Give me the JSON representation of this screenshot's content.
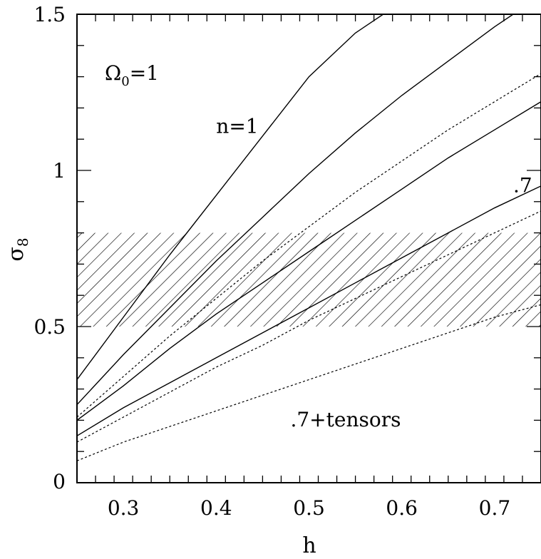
{
  "chart_data": {
    "type": "line",
    "xlabel": "h",
    "ylabel": "σ8",
    "xlim": [
      0.25,
      0.75
    ],
    "ylim": [
      0,
      1.5
    ],
    "x_ticks": [
      {
        "value": 0.3,
        "label": "0.3"
      },
      {
        "value": 0.4,
        "label": "0.4"
      },
      {
        "value": 0.5,
        "label": "0.5"
      },
      {
        "value": 0.6,
        "label": "0.6"
      },
      {
        "value": 0.7,
        "label": "0.7"
      }
    ],
    "y_ticks": [
      {
        "value": 0,
        "label": "0"
      },
      {
        "value": 0.5,
        "label": "0.5"
      },
      {
        "value": 1,
        "label": "1"
      },
      {
        "value": 1.5,
        "label": "1.5"
      }
    ],
    "shaded_band": {
      "ymin": 0.5,
      "ymax": 0.8,
      "pattern": "diagonal-hatch"
    },
    "series": [
      {
        "style": "solid",
        "x": [
          0.25,
          0.3,
          0.35,
          0.4,
          0.45,
          0.5,
          0.55,
          0.58
        ],
        "y": [
          0.33,
          0.53,
          0.73,
          0.92,
          1.11,
          1.3,
          1.44,
          1.5
        ]
      },
      {
        "style": "solid",
        "x": [
          0.25,
          0.3,
          0.35,
          0.4,
          0.45,
          0.5,
          0.55,
          0.6,
          0.65,
          0.7,
          0.72
        ],
        "y": [
          0.25,
          0.41,
          0.56,
          0.71,
          0.85,
          0.99,
          1.12,
          1.24,
          1.35,
          1.46,
          1.5
        ]
      },
      {
        "style": "dotted",
        "x": [
          0.25,
          0.3,
          0.35,
          0.4,
          0.45,
          0.5,
          0.55,
          0.6,
          0.65,
          0.7,
          0.75
        ],
        "y": [
          0.21,
          0.34,
          0.47,
          0.59,
          0.71,
          0.82,
          0.93,
          1.03,
          1.13,
          1.22,
          1.31
        ]
      },
      {
        "style": "solid",
        "x": [
          0.25,
          0.3,
          0.35,
          0.4,
          0.45,
          0.5,
          0.55,
          0.6,
          0.65,
          0.7,
          0.75
        ],
        "y": [
          0.2,
          0.31,
          0.43,
          0.54,
          0.64,
          0.74,
          0.84,
          0.94,
          1.04,
          1.13,
          1.22
        ]
      },
      {
        "style": "solid",
        "x": [
          0.25,
          0.3,
          0.35,
          0.4,
          0.45,
          0.5,
          0.55,
          0.6,
          0.65,
          0.7,
          0.75
        ],
        "y": [
          0.15,
          0.24,
          0.32,
          0.4,
          0.48,
          0.56,
          0.64,
          0.72,
          0.8,
          0.88,
          0.95
        ]
      },
      {
        "style": "dotted",
        "x": [
          0.25,
          0.3,
          0.35,
          0.4,
          0.45,
          0.5,
          0.55,
          0.6,
          0.65,
          0.7,
          0.75
        ],
        "y": [
          0.13,
          0.21,
          0.29,
          0.37,
          0.44,
          0.52,
          0.59,
          0.66,
          0.73,
          0.8,
          0.87
        ]
      },
      {
        "style": "dotted",
        "x": [
          0.25,
          0.3,
          0.35,
          0.4,
          0.45,
          0.5,
          0.55,
          0.6,
          0.65,
          0.7,
          0.75
        ],
        "y": [
          0.07,
          0.13,
          0.18,
          0.23,
          0.28,
          0.33,
          0.38,
          0.43,
          0.48,
          0.53,
          0.57
        ]
      }
    ],
    "annotations": [
      {
        "text": "Ω0=1",
        "x": 0.28,
        "y": 1.29
      },
      {
        "text": "n=1",
        "x": 0.4,
        "y": 1.12
      },
      {
        "text": ".7",
        "x": 0.72,
        "y": 0.93
      },
      {
        "text": ".7+tensors",
        "x": 0.48,
        "y": 0.18
      }
    ]
  }
}
